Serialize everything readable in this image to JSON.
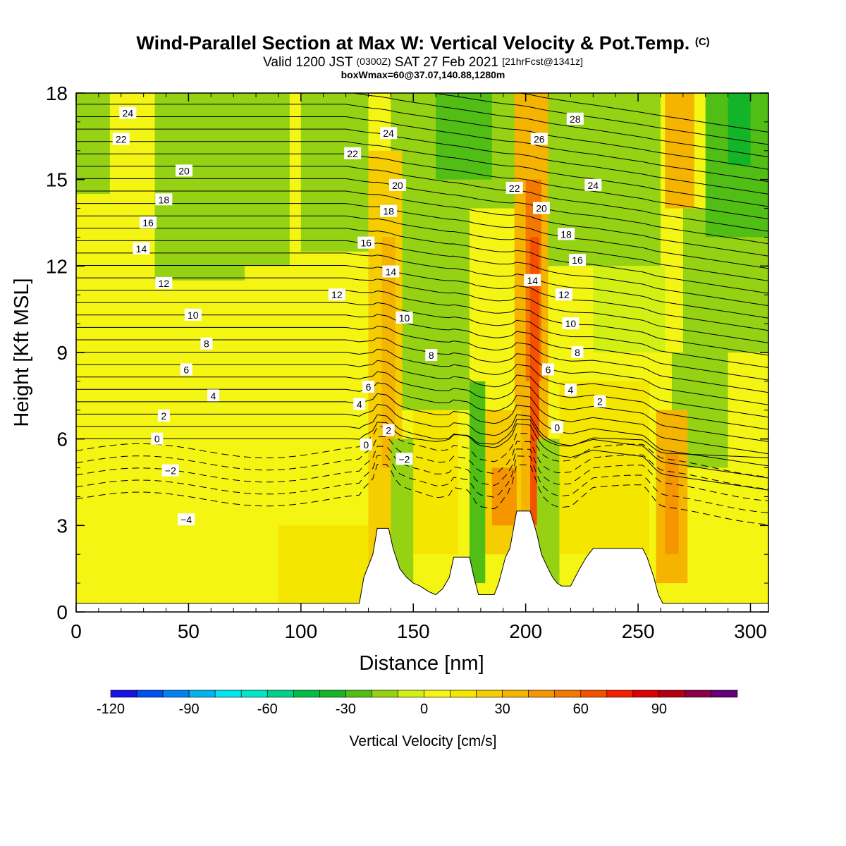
{
  "title": {
    "main": "Wind-Parallel Section at Max W: Vertical Velocity & Pot.Temp.",
    "copyright": "(C)",
    "valid_prefix": "Valid 1200 JST",
    "valid_utc": "(0300Z)",
    "valid_date": "SAT 27 Feb 2021",
    "forecast": "[21hrFcst@1341z]",
    "box_info": "boxWmax=60@37.07,140.88,1280m"
  },
  "colorbar": {
    "label": "Vertical Velocity [cm/s]",
    "min": -120,
    "max": 110,
    "step": 10,
    "tick_labels": [
      "-120",
      "-90",
      "-60",
      "-30",
      "0",
      "30",
      "60",
      "90"
    ],
    "tick_values": [
      -120,
      -90,
      -60,
      -30,
      0,
      30,
      60,
      90
    ],
    "colors": [
      "#1414e6",
      "#0050f0",
      "#0082f0",
      "#00b4f0",
      "#00e6f0",
      "#00e6c8",
      "#00d28c",
      "#00be46",
      "#14b428",
      "#50be14",
      "#96d214",
      "#d2f014",
      "#f5f514",
      "#f5e600",
      "#f5cd00",
      "#f5b400",
      "#f59600",
      "#f57800",
      "#f55000",
      "#f51e00",
      "#dc0000",
      "#b40014",
      "#8c0046",
      "#640078"
    ]
  },
  "chart_data": {
    "type": "heatmap",
    "xlabel": "Distance [nm]",
    "ylabel": "Height [Kft MSL]",
    "xlim": [
      0,
      308
    ],
    "ylim": [
      0,
      18
    ],
    "x_ticks": [
      0,
      50,
      100,
      150,
      200,
      250,
      300
    ],
    "x_tick_labels": [
      "0",
      "50",
      "100",
      "150",
      "200",
      "250",
      "300"
    ],
    "y_ticks": [
      0,
      3,
      6,
      9,
      12,
      15,
      18
    ],
    "y_tick_labels": [
      "0",
      "3",
      "6",
      "9",
      "12",
      "15",
      "18"
    ],
    "field": "Vertical Velocity [cm/s]",
    "contour_field": "Potential Temperature (C)",
    "terrain_kft": [
      [
        0,
        0.3
      ],
      [
        126,
        0.3
      ],
      [
        128,
        1.2
      ],
      [
        132,
        2.0
      ],
      [
        134,
        2.9
      ],
      [
        139,
        2.9
      ],
      [
        141,
        2.2
      ],
      [
        144,
        1.5
      ],
      [
        147,
        1.2
      ],
      [
        150,
        1.0
      ],
      [
        153,
        0.9
      ],
      [
        157,
        0.7
      ],
      [
        160,
        0.6
      ],
      [
        163,
        0.8
      ],
      [
        166,
        1.2
      ],
      [
        168,
        1.9
      ],
      [
        175,
        1.9
      ],
      [
        177,
        1.2
      ],
      [
        179,
        0.6
      ],
      [
        186,
        0.6
      ],
      [
        188,
        1.0
      ],
      [
        191,
        1.9
      ],
      [
        193,
        2.2
      ],
      [
        196,
        3.5
      ],
      [
        202,
        3.5
      ],
      [
        205,
        2.7
      ],
      [
        207,
        2.0
      ],
      [
        210,
        1.5
      ],
      [
        212,
        1.2
      ],
      [
        214,
        1.0
      ],
      [
        216,
        0.9
      ],
      [
        220,
        0.9
      ],
      [
        222,
        1.2
      ],
      [
        224,
        1.5
      ],
      [
        227,
        1.9
      ],
      [
        230,
        2.2
      ],
      [
        245,
        2.2
      ],
      [
        252,
        2.2
      ],
      [
        254,
        1.9
      ],
      [
        257,
        1.2
      ],
      [
        259,
        0.6
      ],
      [
        261,
        0.3
      ],
      [
        308,
        0.3
      ]
    ],
    "shading_cells": [
      {
        "x": [
          0,
          308
        ],
        "z": [
          0,
          18
        ],
        "w": 5
      },
      {
        "x": [
          0,
          15
        ],
        "z": [
          14.5,
          18
        ],
        "w": -12
      },
      {
        "x": [
          35,
          75
        ],
        "z": [
          11.5,
          18
        ],
        "w": -15
      },
      {
        "x": [
          52,
          70
        ],
        "z": [
          14,
          18
        ],
        "w": -20
      },
      {
        "x": [
          72,
          95
        ],
        "z": [
          12,
          18
        ],
        "w": -15
      },
      {
        "x": [
          100,
          130
        ],
        "z": [
          12.5,
          18
        ],
        "w": -15
      },
      {
        "x": [
          115,
          130
        ],
        "z": [
          15,
          18
        ],
        "w": -20
      },
      {
        "x": [
          140,
          200
        ],
        "z": [
          14,
          18
        ],
        "w": -18
      },
      {
        "x": [
          145,
          175
        ],
        "z": [
          7,
          14
        ],
        "w": -12
      },
      {
        "x": [
          160,
          185
        ],
        "z": [
          15,
          18
        ],
        "w": -30
      },
      {
        "x": [
          210,
          260
        ],
        "z": [
          12,
          18
        ],
        "w": -15
      },
      {
        "x": [
          230,
          262
        ],
        "z": [
          9,
          12
        ],
        "w": -10
      },
      {
        "x": [
          270,
          308
        ],
        "z": [
          9,
          14
        ],
        "w": -15
      },
      {
        "x": [
          280,
          308
        ],
        "z": [
          13,
          18
        ],
        "w": -30
      },
      {
        "x": [
          290,
          300
        ],
        "z": [
          15.5,
          18
        ],
        "w": -40
      },
      {
        "x": [
          265,
          290
        ],
        "z": [
          5,
          9
        ],
        "w": -12
      },
      {
        "x": [
          130,
          145
        ],
        "z": [
          1,
          16
        ],
        "w": 22
      },
      {
        "x": [
          136,
          142
        ],
        "z": [
          5,
          13
        ],
        "w": 35
      },
      {
        "x": [
          195,
          210
        ],
        "z": [
          2,
          18
        ],
        "w": 30
      },
      {
        "x": [
          200,
          207
        ],
        "z": [
          8,
          15
        ],
        "w": 55
      },
      {
        "x": [
          202,
          206
        ],
        "z": [
          3,
          13
        ],
        "w": 62
      },
      {
        "x": [
          258,
          272
        ],
        "z": [
          1,
          7
        ],
        "w": 35
      },
      {
        "x": [
          262,
          268
        ],
        "z": [
          2,
          5.5
        ],
        "w": 48
      },
      {
        "x": [
          262,
          275
        ],
        "z": [
          14,
          18
        ],
        "w": 30
      },
      {
        "x": [
          180,
          198
        ],
        "z": [
          2,
          7
        ],
        "w": 25
      },
      {
        "x": [
          185,
          196
        ],
        "z": [
          3,
          5
        ],
        "w": 40
      },
      {
        "x": [
          90,
          130
        ],
        "z": [
          0,
          3
        ],
        "w": 15
      },
      {
        "x": [
          150,
          170
        ],
        "z": [
          2,
          7
        ],
        "w": 15
      },
      {
        "x": [
          215,
          255
        ],
        "z": [
          2,
          8
        ],
        "w": 12
      },
      {
        "x": [
          140,
          150
        ],
        "z": [
          0.5,
          6
        ],
        "w": -12
      },
      {
        "x": [
          175,
          182
        ],
        "z": [
          1,
          8
        ],
        "w": -25
      },
      {
        "x": [
          205,
          215
        ],
        "z": [
          1,
          6
        ],
        "w": -20
      }
    ],
    "isotherm_labels": [
      {
        "value": "24",
        "x": 23,
        "z": 17.3
      },
      {
        "value": "22",
        "x": 20,
        "z": 16.4
      },
      {
        "value": "20",
        "x": 48,
        "z": 15.3
      },
      {
        "value": "18",
        "x": 39,
        "z": 14.3
      },
      {
        "value": "16",
        "x": 32,
        "z": 13.5
      },
      {
        "value": "14",
        "x": 29,
        "z": 12.6
      },
      {
        "value": "12",
        "x": 39,
        "z": 11.4
      },
      {
        "value": "10",
        "x": 52,
        "z": 10.3
      },
      {
        "value": "8",
        "x": 58,
        "z": 9.3
      },
      {
        "value": "6",
        "x": 49,
        "z": 8.4
      },
      {
        "value": "4",
        "x": 61,
        "z": 7.5
      },
      {
        "value": "2",
        "x": 39,
        "z": 6.8
      },
      {
        "value": "0",
        "x": 36,
        "z": 6.0
      },
      {
        "value": "−2",
        "x": 42,
        "z": 4.9
      },
      {
        "value": "−4",
        "x": 49,
        "z": 3.2
      },
      {
        "value": "24",
        "x": 139,
        "z": 16.6
      },
      {
        "value": "22",
        "x": 123,
        "z": 15.9
      },
      {
        "value": "20",
        "x": 143,
        "z": 14.8
      },
      {
        "value": "18",
        "x": 139,
        "z": 13.9
      },
      {
        "value": "16",
        "x": 129,
        "z": 12.8
      },
      {
        "value": "14",
        "x": 140,
        "z": 11.8
      },
      {
        "value": "12",
        "x": 116,
        "z": 11.0
      },
      {
        "value": "10",
        "x": 146,
        "z": 10.2
      },
      {
        "value": "8",
        "x": 158,
        "z": 8.9
      },
      {
        "value": "6",
        "x": 130,
        "z": 7.8
      },
      {
        "value": "4",
        "x": 126,
        "z": 7.2
      },
      {
        "value": "2",
        "x": 139,
        "z": 6.3
      },
      {
        "value": "0",
        "x": 129,
        "z": 5.8
      },
      {
        "value": "−2",
        "x": 146,
        "z": 5.3
      },
      {
        "value": "28",
        "x": 222,
        "z": 17.1
      },
      {
        "value": "26",
        "x": 206,
        "z": 16.4
      },
      {
        "value": "22",
        "x": 195,
        "z": 14.7
      },
      {
        "value": "24",
        "x": 230,
        "z": 14.8
      },
      {
        "value": "20",
        "x": 207,
        "z": 14.0
      },
      {
        "value": "18",
        "x": 218,
        "z": 13.1
      },
      {
        "value": "16",
        "x": 223,
        "z": 12.2
      },
      {
        "value": "14",
        "x": 203,
        "z": 11.5
      },
      {
        "value": "12",
        "x": 217,
        "z": 11.0
      },
      {
        "value": "10",
        "x": 220,
        "z": 10.0
      },
      {
        "value": "8",
        "x": 223,
        "z": 9.0
      },
      {
        "value": "6",
        "x": 210,
        "z": 8.4
      },
      {
        "value": "4",
        "x": 220,
        "z": 7.7
      },
      {
        "value": "2",
        "x": 233,
        "z": 7.3
      },
      {
        "value": "0",
        "x": 214,
        "z": 6.4
      }
    ]
  }
}
